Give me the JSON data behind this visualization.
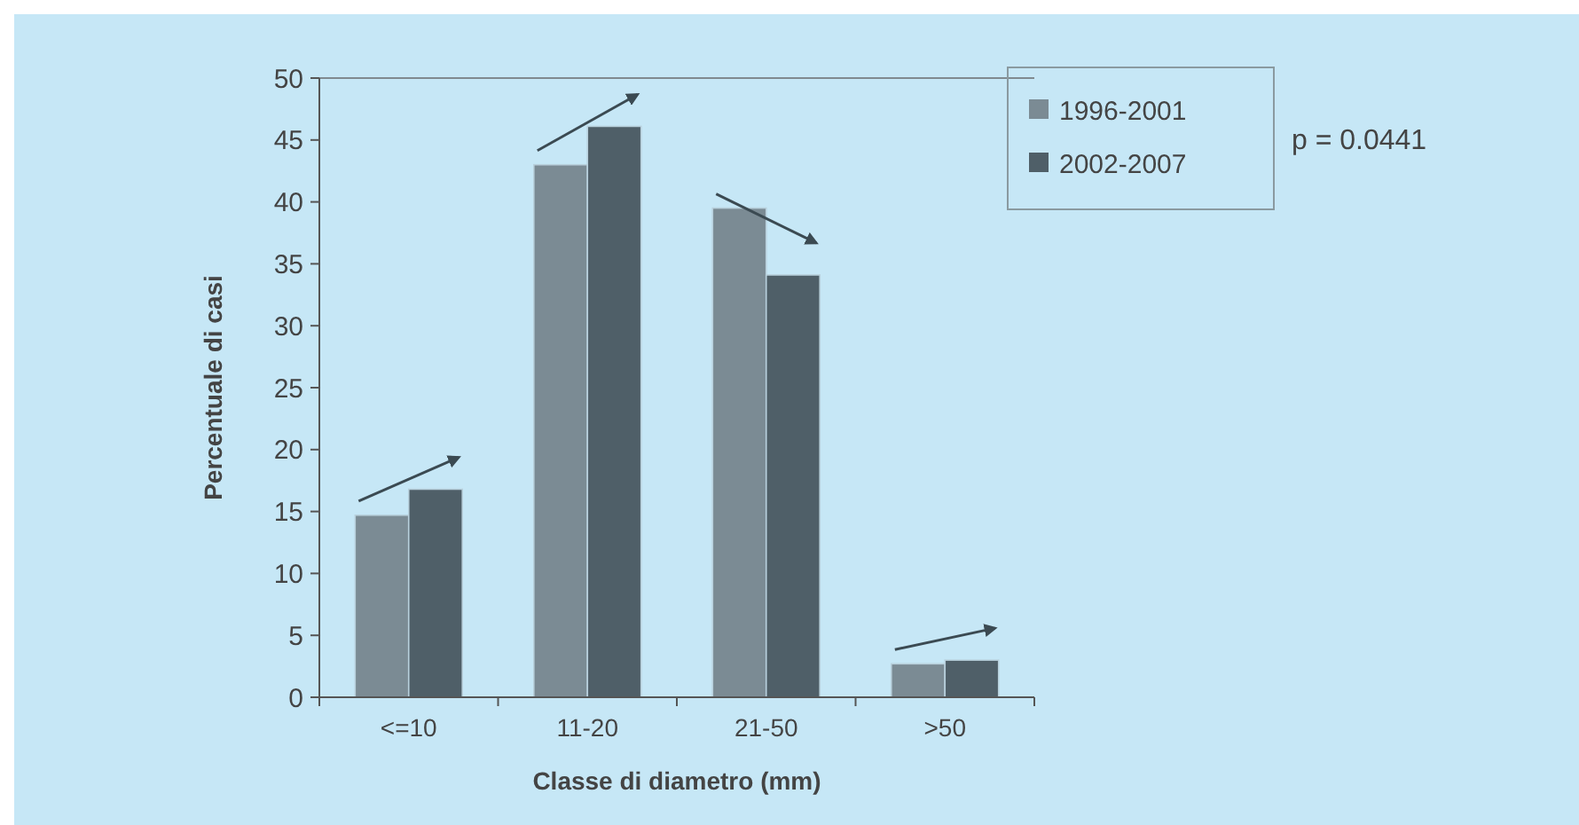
{
  "chart_data": {
    "type": "bar",
    "xlabel": "Classe di diametro (mm)",
    "ylabel": "Percentuale di casi",
    "categories": [
      "<=10",
      "11-20",
      "21-50",
      ">50"
    ],
    "series": [
      {
        "name": "1996-2001",
        "color": "#7b8b94",
        "values": [
          14.7,
          43.0,
          39.5,
          2.7
        ]
      },
      {
        "name": "2002-2007",
        "color": "#4f5f68",
        "values": [
          16.8,
          46.1,
          34.1,
          3.0
        ]
      }
    ],
    "ylim": [
      0,
      50
    ],
    "yticks": [
      0,
      5,
      10,
      15,
      20,
      25,
      30,
      35,
      40,
      45,
      50
    ],
    "grid": false,
    "legend": "top right",
    "annotations": [
      "p = 0.0441"
    ]
  }
}
